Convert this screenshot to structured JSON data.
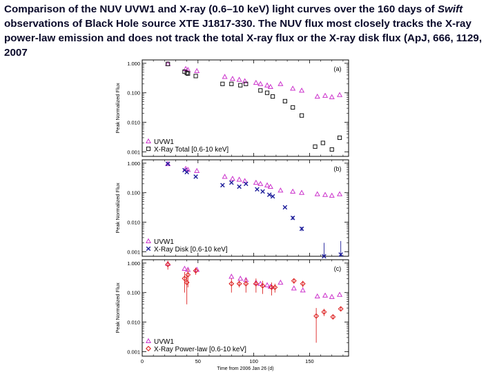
{
  "caption": {
    "part1": "Comparison of the NUV UVW1 and X-ray (0.6–10 keV) light curves over the 160 days of ",
    "italic": "Swift",
    "part2": " observations of Black Hole source XTE J1817-330. The NUV flux most closely tracks the X-ray power-law emission and does not track the total X-ray flux or the X-ray disk flux (ApJ, 666, 1129, 2007"
  },
  "figure": {
    "xlabel": "Time from 2006 Jan 26 (d)",
    "x_ticks": [
      0,
      50,
      100,
      150
    ],
    "y_ticks": [
      "1.000",
      "0.100",
      "0.010",
      "0.001"
    ],
    "ylabel": "Peak Normalized Flux"
  },
  "chart_data": [
    {
      "type": "scatter",
      "panel_label": "(a)",
      "xlim": [
        0,
        185
      ],
      "ylim": [
        0.0007,
        1.3
      ],
      "yscale": "log",
      "xlabel": "Time from 2006 Jan 26 (d)",
      "ylabel": "Peak Normalized Flux",
      "legend_position": "bottom-left",
      "series": [
        {
          "name": "UVW1",
          "marker": "triangle",
          "color": "#cc33cc",
          "x": [
            23,
            39,
            41,
            49,
            74,
            81,
            87,
            92,
            102,
            106,
            112,
            115,
            124,
            135,
            143,
            157,
            164,
            170,
            177
          ],
          "y": [
            0.95,
            0.65,
            0.6,
            0.55,
            0.35,
            0.3,
            0.28,
            0.25,
            0.22,
            0.2,
            0.18,
            0.16,
            0.2,
            0.14,
            0.12,
            0.075,
            0.08,
            0.072,
            0.085
          ]
        },
        {
          "name": "X-Ray Total [0.6-10 keV]",
          "marker": "square",
          "color": "#111111",
          "x": [
            23,
            38,
            40,
            41,
            48,
            72,
            80,
            88,
            93,
            106,
            112,
            117,
            128,
            135,
            143,
            155,
            162,
            170,
            177
          ],
          "y": [
            0.95,
            0.52,
            0.47,
            0.45,
            0.37,
            0.2,
            0.2,
            0.18,
            0.2,
            0.12,
            0.1,
            0.075,
            0.052,
            0.032,
            0.017,
            0.0015,
            0.002,
            0.0012,
            0.003
          ]
        }
      ]
    },
    {
      "type": "scatter",
      "panel_label": "(b)",
      "xlim": [
        0,
        185
      ],
      "ylim": [
        0.0007,
        1.3
      ],
      "yscale": "log",
      "legend_position": "bottom-left",
      "series": [
        {
          "name": "UVW1",
          "marker": "triangle",
          "color": "#cc33cc",
          "x": [
            23,
            39,
            41,
            49,
            74,
            81,
            87,
            92,
            102,
            106,
            112,
            115,
            124,
            135,
            143,
            157,
            164,
            170,
            177
          ],
          "y": [
            0.95,
            0.65,
            0.6,
            0.55,
            0.35,
            0.3,
            0.28,
            0.25,
            0.22,
            0.2,
            0.18,
            0.16,
            0.12,
            0.11,
            0.1,
            0.09,
            0.085,
            0.08,
            0.09
          ]
        },
        {
          "name": "X-Ray Disk [0.6-10 keV]",
          "marker": "x",
          "color": "#1a1a99",
          "x": [
            23,
            38,
            40,
            48,
            72,
            80,
            87,
            93,
            103,
            108,
            114,
            117,
            128,
            135,
            143,
            163,
            178
          ],
          "y": [
            0.95,
            0.58,
            0.5,
            0.35,
            0.18,
            0.22,
            0.16,
            0.2,
            0.13,
            0.11,
            0.085,
            0.075,
            0.032,
            0.014,
            0.006,
            0.0005,
            0.0008
          ],
          "yerr": [
            0,
            0,
            0,
            0,
            0,
            0,
            0,
            0,
            0,
            0,
            0,
            0,
            0,
            0.002,
            0.001,
            0.0015,
            0.0015
          ]
        }
      ]
    },
    {
      "type": "scatter",
      "panel_label": "(c)",
      "xlim": [
        0,
        185
      ],
      "ylim": [
        0.0007,
        1.3
      ],
      "yscale": "log",
      "legend_position": "bottom-left",
      "series": [
        {
          "name": "UVW1",
          "marker": "triangle",
          "color": "#cc33cc",
          "x": [
            23,
            38,
            41,
            49,
            80,
            88,
            93,
            102,
            106,
            112,
            115,
            124,
            136,
            144,
            157,
            164,
            170,
            177
          ],
          "y": [
            0.95,
            0.65,
            0.6,
            0.6,
            0.35,
            0.3,
            0.27,
            0.22,
            0.2,
            0.18,
            0.16,
            0.22,
            0.14,
            0.12,
            0.075,
            0.08,
            0.072,
            0.085
          ]
        },
        {
          "name": "X-Ray Power-law [0.6-10 keV]",
          "marker": "diamond",
          "color": "#dd2222",
          "x": [
            23,
            38,
            40,
            41,
            48,
            80,
            87,
            93,
            102,
            108,
            116,
            119,
            136,
            144,
            156,
            163,
            171,
            178
          ],
          "y": [
            0.9,
            0.3,
            0.22,
            0.4,
            0.55,
            0.2,
            0.2,
            0.2,
            0.2,
            0.17,
            0.15,
            0.15,
            0.25,
            0.2,
            0.016,
            0.022,
            0.015,
            0.028
          ],
          "yerr": [
            0.3,
            0.2,
            0.18,
            0.25,
            0.15,
            0.1,
            0.05,
            0.1,
            0.1,
            0.08,
            0.07,
            0.05,
            0.05,
            0.05,
            0.014,
            0.006,
            0.002,
            0.004
          ]
        }
      ]
    }
  ]
}
